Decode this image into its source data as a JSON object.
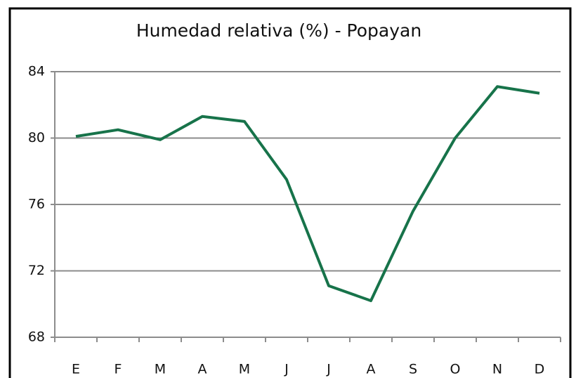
{
  "chart_data": {
    "type": "line",
    "title": "Humedad relativa (%) - Popayan",
    "categories": [
      "E",
      "F",
      "M",
      "A",
      "M",
      "J",
      "J",
      "A",
      "S",
      "O",
      "N",
      "D"
    ],
    "series": [
      {
        "name": "Humedad relativa",
        "color": "#17734a",
        "values": [
          80.1,
          80.5,
          79.9,
          81.3,
          81.0,
          77.5,
          71.1,
          70.2,
          75.6,
          80.0,
          83.1,
          82.7
        ]
      }
    ],
    "ylim": [
      68,
      84
    ],
    "yticks": [
      68,
      72,
      76,
      80,
      84
    ],
    "grid": true
  }
}
